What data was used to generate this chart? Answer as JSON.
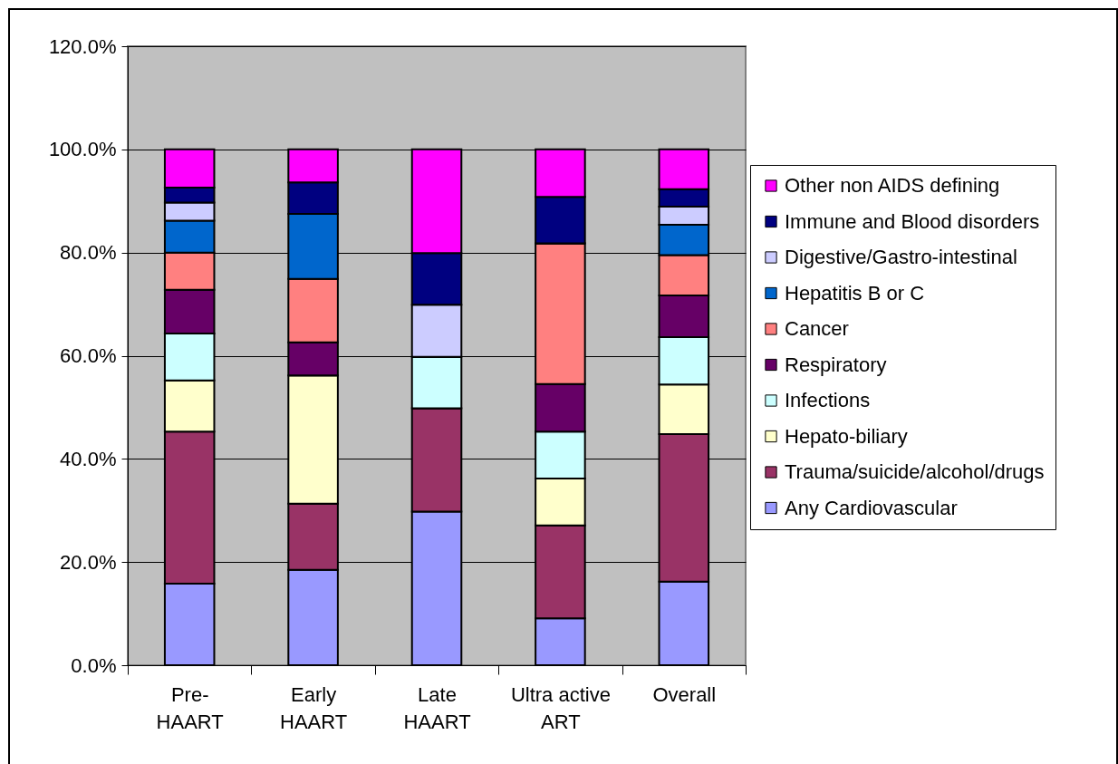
{
  "chart_data": {
    "type": "bar",
    "stacked": true,
    "categories": [
      "Pre-HAART",
      "Early HAART",
      "Late HAART",
      "Ultra active ART",
      "Overall"
    ],
    "series": [
      {
        "name": "Any Cardiovascular",
        "color": "#9999ff",
        "values": [
          15.8,
          18.5,
          29.8,
          9.1,
          16.2
        ]
      },
      {
        "name": "Trauma/suicide/alcohol/drugs",
        "color": "#993366",
        "values": [
          29.5,
          12.8,
          20.0,
          18.0,
          28.6
        ]
      },
      {
        "name": "Hepato-biliary",
        "color": "#ffffcc",
        "values": [
          9.9,
          24.9,
          0,
          9.1,
          9.6
        ]
      },
      {
        "name": "Infections",
        "color": "#ccffff",
        "values": [
          9.1,
          0,
          10.0,
          9.1,
          9.2
        ]
      },
      {
        "name": "Respiratory",
        "color": "#660066",
        "values": [
          8.5,
          6.4,
          0,
          9.2,
          8.1
        ]
      },
      {
        "name": "Cancer",
        "color": "#ff8080",
        "values": [
          7.2,
          12.3,
          0,
          27.3,
          7.8
        ]
      },
      {
        "name": "Hepatitis B or C",
        "color": "#0066cc",
        "values": [
          6.2,
          12.6,
          0,
          0,
          5.9
        ]
      },
      {
        "name": "Digestive/Gastro-intestinal",
        "color": "#ccccff",
        "values": [
          3.5,
          0,
          10.1,
          0,
          3.5
        ]
      },
      {
        "name": "Immune and Blood disorders",
        "color": "#000080",
        "values": [
          2.9,
          6.1,
          10.0,
          9.0,
          3.4
        ]
      },
      {
        "name": "Other non AIDS defining",
        "color": "#ff00ff",
        "values": [
          7.4,
          6.4,
          20.1,
          9.2,
          7.7
        ]
      }
    ],
    "ylim": [
      0,
      120
    ],
    "yticks": [
      {
        "value": 0,
        "label": "0.0%"
      },
      {
        "value": 20,
        "label": "20.0%"
      },
      {
        "value": 40,
        "label": "40.0%"
      },
      {
        "value": 60,
        "label": "60.0%"
      },
      {
        "value": 80,
        "label": "80.0%"
      },
      {
        "value": 100,
        "label": "100.0%"
      },
      {
        "value": 120,
        "label": "120.0%"
      }
    ],
    "grid": "y",
    "legend": "right"
  }
}
